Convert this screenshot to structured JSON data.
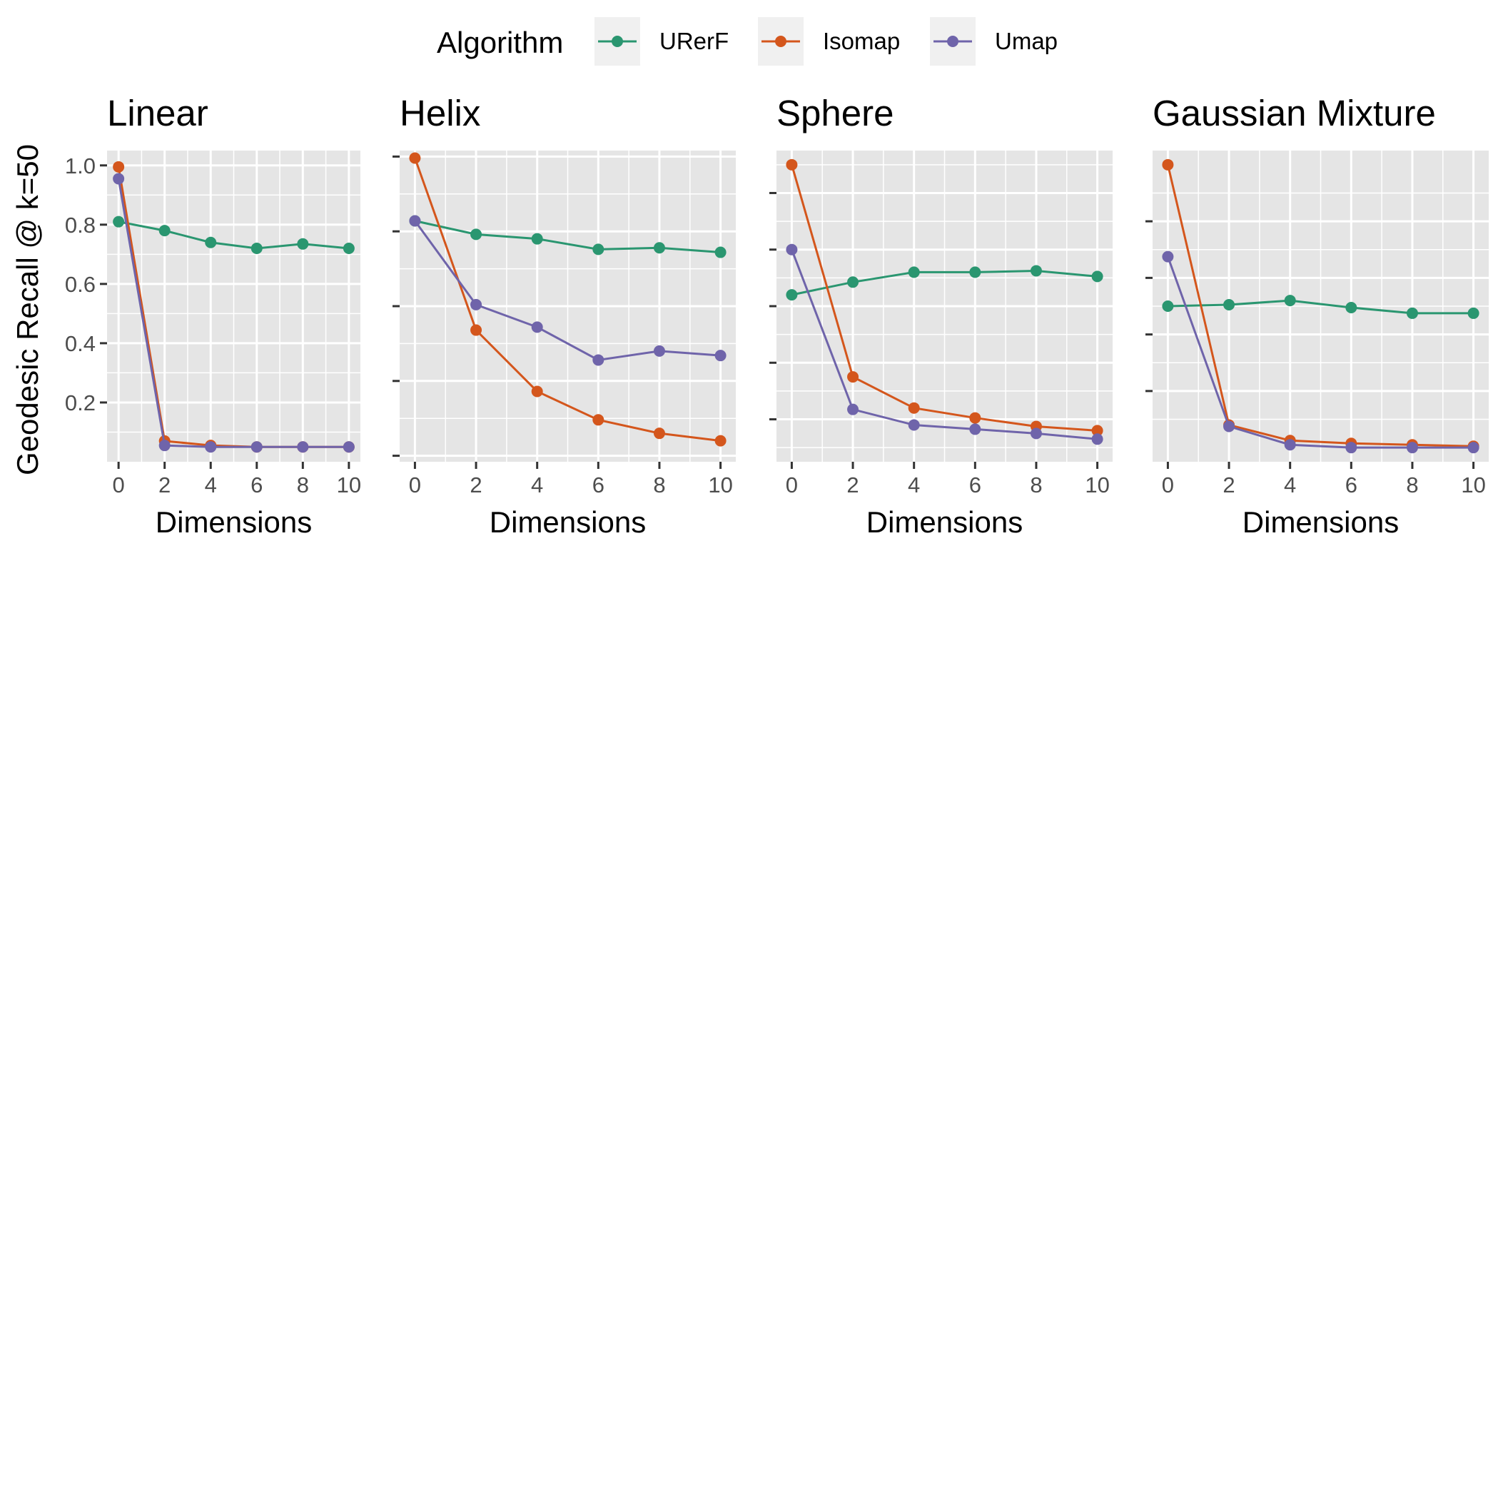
{
  "legend": {
    "title": "Algorithm",
    "placement": "top",
    "items": [
      {
        "name": "URerF",
        "color": "#2a9670"
      },
      {
        "name": "Isomap",
        "color": "#d4561c"
      },
      {
        "name": "Umap",
        "color": "#6f64aa"
      }
    ]
  },
  "ylabel": "Geodesic Recall @ k=50",
  "colors": {
    "panel_bg": "#e5e5e5",
    "grid": "#ffffff"
  },
  "chart_data": [
    {
      "type": "line",
      "title": "Linear",
      "xlabel": "Dimensions",
      "ylabel": "Geodesic Recall @ k=50",
      "x": [
        0,
        2,
        4,
        6,
        8,
        10
      ],
      "xlim": [
        -0.5,
        10.5
      ],
      "ylim": [
        0.0,
        1.05
      ],
      "xticks": [
        0,
        2,
        4,
        6,
        8,
        10
      ],
      "yticks": [
        0.2,
        0.4,
        0.6,
        0.8,
        1.0
      ],
      "ytick_labels": [
        "0.2",
        "0.4",
        "0.6",
        "0.8",
        "1.0"
      ],
      "grid": true,
      "series": [
        {
          "name": "URerF",
          "values": [
            0.81,
            0.78,
            0.74,
            0.72,
            0.735,
            0.72
          ]
        },
        {
          "name": "Isomap",
          "values": [
            0.995,
            0.07,
            0.055,
            0.05,
            0.05,
            0.05
          ]
        },
        {
          "name": "Umap",
          "values": [
            0.955,
            0.055,
            0.05,
            0.05,
            0.05,
            0.05
          ]
        }
      ]
    },
    {
      "type": "line",
      "title": "Helix",
      "xlabel": "Dimensions",
      "x": [
        0,
        2,
        4,
        6,
        8,
        10
      ],
      "xlim": [
        -0.5,
        10.5
      ],
      "ylim": [
        -0.02,
        1.02
      ],
      "xticks": [
        0,
        2,
        4,
        6,
        8,
        10
      ],
      "yticks": [
        0.0,
        0.25,
        0.5,
        0.75,
        1.0
      ],
      "ytick_labels": [],
      "grid": true,
      "series": [
        {
          "name": "URerF",
          "values": [
            0.785,
            0.74,
            0.725,
            0.69,
            0.695,
            0.68
          ]
        },
        {
          "name": "Isomap",
          "values": [
            0.995,
            0.42,
            0.215,
            0.12,
            0.075,
            0.05
          ]
        },
        {
          "name": "Umap",
          "values": [
            0.785,
            0.505,
            0.43,
            0.32,
            0.35,
            0.335
          ]
        }
      ]
    },
    {
      "type": "line",
      "title": "Sphere",
      "xlabel": "Dimensions",
      "x": [
        0,
        2,
        4,
        6,
        8,
        10
      ],
      "xlim": [
        -0.5,
        10.5
      ],
      "ylim": [
        -0.05,
        1.05
      ],
      "xticks": [
        0,
        2,
        4,
        6,
        8,
        10
      ],
      "yticks": [
        0.1,
        0.3,
        0.5,
        0.7,
        0.9
      ],
      "ytick_labels": [],
      "grid": true,
      "series": [
        {
          "name": "URerF",
          "values": [
            0.54,
            0.585,
            0.62,
            0.62,
            0.625,
            0.605
          ]
        },
        {
          "name": "Isomap",
          "values": [
            1.0,
            0.25,
            0.14,
            0.105,
            0.075,
            0.06
          ]
        },
        {
          "name": "Umap",
          "values": [
            0.7,
            0.135,
            0.08,
            0.065,
            0.05,
            0.03
          ]
        }
      ]
    },
    {
      "type": "line",
      "title": "Gaussian Mixture",
      "xlabel": "Dimensions",
      "x": [
        0,
        2,
        4,
        6,
        8,
        10
      ],
      "xlim": [
        -0.5,
        10.5
      ],
      "ylim": [
        -0.05,
        1.05
      ],
      "xticks": [
        0,
        2,
        4,
        6,
        8,
        10
      ],
      "yticks": [
        0.2,
        0.4,
        0.6,
        0.8
      ],
      "ytick_labels": [],
      "grid": true,
      "series": [
        {
          "name": "URerF",
          "values": [
            0.5,
            0.505,
            0.52,
            0.495,
            0.475,
            0.475
          ]
        },
        {
          "name": "Isomap",
          "values": [
            1.0,
            0.08,
            0.025,
            0.015,
            0.01,
            0.005
          ]
        },
        {
          "name": "Umap",
          "values": [
            0.675,
            0.075,
            0.01,
            0.0,
            0.0,
            0.0
          ]
        }
      ]
    }
  ]
}
